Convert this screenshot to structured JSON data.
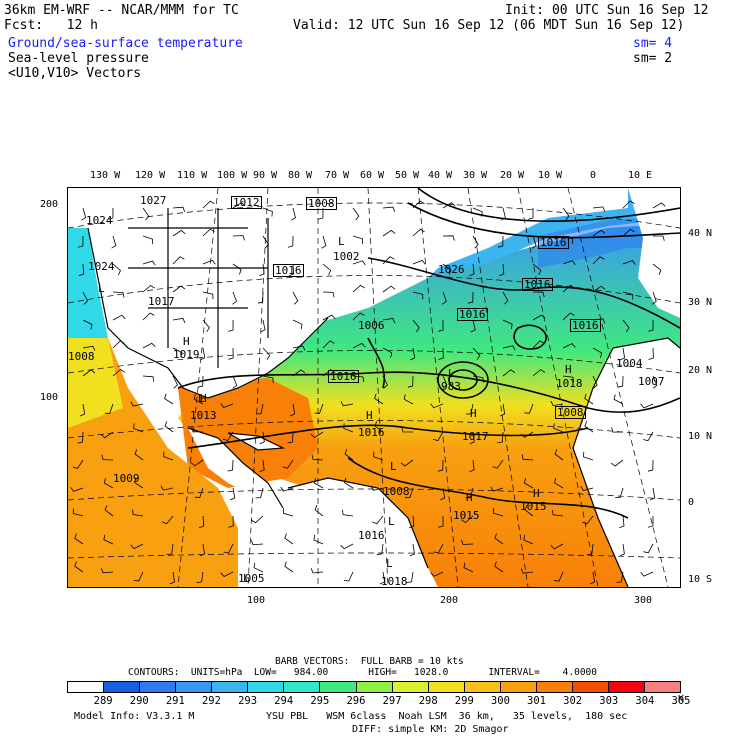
{
  "header": {
    "model": "36km EM-WRF -- NCAR/MMM for TC",
    "init": "Init: 00 UTC Sun 16 Sep 12",
    "fcst": "Fcst:   12 h",
    "valid": "Valid: 12 UTC Sun 16 Sep 12 (06 MDT Sun 16 Sep 12)",
    "field1": "Ground/sea-surface temperature",
    "field1_sm": "sm= 4",
    "field2": "Sea-level pressure",
    "field2_sm": "sm= 2",
    "field3": "<U10,V10> Vectors"
  },
  "axes": {
    "top_lon": [
      "130 W",
      "120 W",
      "110 W",
      "100 W",
      "90 W",
      "80 W",
      "70 W",
      "60 W",
      "50 W",
      "40 W",
      "30 W",
      "20 W",
      "10 W",
      "0",
      "10 E"
    ],
    "right_lat": [
      "40 N",
      "30 N",
      "20 N",
      "10 N",
      "0",
      "10 S"
    ],
    "left_grid": [
      "200",
      "100"
    ],
    "bottom_grid": [
      "100",
      "200",
      "300"
    ]
  },
  "pressure_labels": {
    "boxed": [
      "1012",
      "1008",
      "1016",
      "1016",
      "1016",
      "1016",
      "1016",
      "1016",
      "1008"
    ],
    "plain": [
      "1027",
      "1024",
      "1024",
      "1017",
      "1002",
      "1006",
      "1026",
      "1004",
      "1008",
      "1019",
      "1013",
      "1009",
      "1016",
      "983",
      "1017",
      "1018",
      "1007",
      "1008",
      "1015",
      "1015",
      "1016",
      "1018",
      "1005"
    ],
    "highs": [
      "H",
      "H",
      "H",
      "H",
      "H",
      "H",
      "H"
    ],
    "lows": [
      "L",
      "L",
      "L",
      "L",
      "L",
      "L",
      "L",
      "L"
    ]
  },
  "legend": {
    "barb": "BARB VECTORS:  FULL BARB = 10 kts",
    "contours": "CONTOURS:  UNITS=hPa  LOW=   984.00       HIGH=   1028.0       INTERVAL=    4.0000",
    "unit": "K",
    "values": [
      "289",
      "290",
      "291",
      "292",
      "293",
      "294",
      "295",
      "296",
      "297",
      "298",
      "299",
      "300",
      "301",
      "302",
      "303",
      "304",
      "305"
    ],
    "colors": [
      "#ffffff",
      "#1560e0",
      "#2a7cf0",
      "#3a96f4",
      "#3cb4f0",
      "#30d8e8",
      "#30e8c8",
      "#40e880",
      "#90f040",
      "#d8f030",
      "#f0e020",
      "#f8c018",
      "#f8a010",
      "#f88008",
      "#f05000",
      "#f80010",
      "#f88080"
    ]
  },
  "footer": {
    "model_info": "Model Info: V3.3.1 M",
    "physics1": "YSU PBL   WSM 6class  Noah LSM  36 km,   35 levels,  180 sec",
    "physics2": "DIFF: simple KM: 2D Smagor"
  }
}
